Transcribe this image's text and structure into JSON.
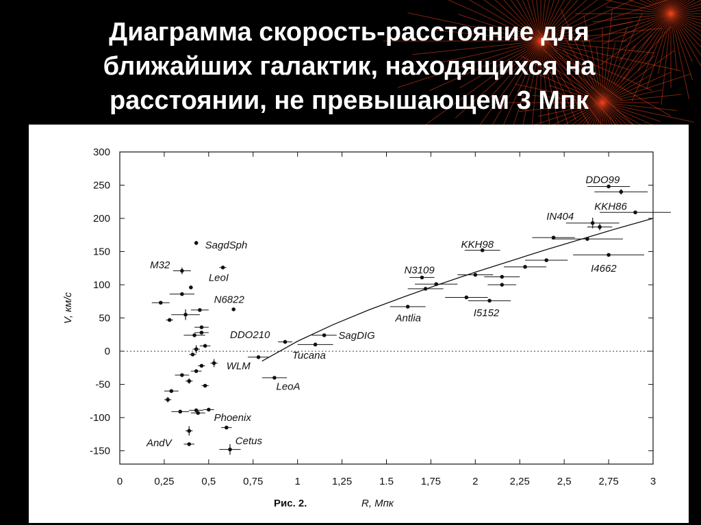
{
  "slide": {
    "title_lines": [
      "Диаграмма скорость-расстояние для",
      "ближайших галактик, находящихся на",
      "расстоянии, не превышающем 3 Мпк"
    ],
    "colors": {
      "background": "#000000",
      "title": "#ffffff",
      "panel": "#ffffff",
      "decoration": "#e8401a"
    }
  },
  "chart_data": {
    "type": "scatter",
    "xlabel": "R, Мпк",
    "ylabel": "V, км/с",
    "caption": "Рис. 2.",
    "xlim": [
      0,
      3
    ],
    "ylim": [
      -170,
      300
    ],
    "x_tick_labels": [
      "0",
      "0,25",
      "0,5",
      "0,75",
      "1",
      "1,25",
      "1.5",
      "1,75",
      "2",
      "2,25",
      "2,5",
      "2,75",
      "3"
    ],
    "y_tick_labels": [
      "300",
      "250",
      "200",
      "150",
      "100",
      "50",
      "0",
      "-50",
      "-100",
      "-150"
    ],
    "zero_line": "dotted",
    "fit_curve": {
      "x": [
        0.8,
        1.0,
        1.2,
        1.4,
        1.6,
        1.8,
        2.0,
        2.2,
        2.4,
        2.6,
        2.8,
        3.0
      ],
      "y": [
        -15,
        15,
        40,
        62,
        82,
        101,
        119,
        136,
        153,
        169,
        185,
        200
      ]
    },
    "points": [
      {
        "x": 2.75,
        "y": 248,
        "xerr": 0.12,
        "yerr": 0,
        "label": "DDO99"
      },
      {
        "x": 2.82,
        "y": 240,
        "xerr": 0.15,
        "yerr": 4,
        "label": ""
      },
      {
        "x": 2.9,
        "y": 209,
        "xerr": 0.2,
        "yerr": 0,
        "label": "KKH86"
      },
      {
        "x": 2.66,
        "y": 193,
        "xerr": 0.15,
        "yerr": 8,
        "label": "IN404"
      },
      {
        "x": 2.7,
        "y": 187,
        "xerr": 0.07,
        "yerr": 5,
        "label": ""
      },
      {
        "x": 2.44,
        "y": 171,
        "xerr": 0.12,
        "yerr": 0,
        "label": ""
      },
      {
        "x": 2.63,
        "y": 169,
        "xerr": 0.2,
        "yerr": 0,
        "label": ""
      },
      {
        "x": 2.75,
        "y": 145,
        "xerr": 0.2,
        "yerr": 0,
        "label": "I4662"
      },
      {
        "x": 2.4,
        "y": 137,
        "xerr": 0.12,
        "yerr": 0,
        "label": ""
      },
      {
        "x": 2.28,
        "y": 127,
        "xerr": 0.12,
        "yerr": 0,
        "label": ""
      },
      {
        "x": 2.04,
        "y": 152,
        "xerr": 0.1,
        "yerr": 0,
        "label": "KKH98"
      },
      {
        "x": 2.0,
        "y": 115,
        "xerr": 0.1,
        "yerr": 0,
        "label": ""
      },
      {
        "x": 2.15,
        "y": 112,
        "xerr": 0.1,
        "yerr": 0,
        "label": ""
      },
      {
        "x": 2.15,
        "y": 100,
        "xerr": 0.08,
        "yerr": 0,
        "label": ""
      },
      {
        "x": 1.7,
        "y": 111,
        "xerr": 0.07,
        "yerr": 0,
        "label": "N3109"
      },
      {
        "x": 1.78,
        "y": 101,
        "xerr": 0.12,
        "yerr": 0,
        "label": ""
      },
      {
        "x": 1.72,
        "y": 94,
        "xerr": 0.1,
        "yerr": 0,
        "label": ""
      },
      {
        "x": 1.95,
        "y": 81,
        "xerr": 0.12,
        "yerr": 0,
        "label": ""
      },
      {
        "x": 2.08,
        "y": 76,
        "xerr": 0.12,
        "yerr": 0,
        "label": "I5152"
      },
      {
        "x": 1.62,
        "y": 67,
        "xerr": 0.1,
        "yerr": 0,
        "label": "Antlia"
      },
      {
        "x": 1.15,
        "y": 24,
        "xerr": 0.07,
        "yerr": 0,
        "label": "SagDIG"
      },
      {
        "x": 0.93,
        "y": 14,
        "xerr": 0.04,
        "yerr": 0,
        "label": "DDO210"
      },
      {
        "x": 1.1,
        "y": 10,
        "xerr": 0.1,
        "yerr": 0,
        "label": "Tucana"
      },
      {
        "x": 0.78,
        "y": -9,
        "xerr": 0.06,
        "yerr": 0,
        "label": ""
      },
      {
        "x": 0.87,
        "y": -40,
        "xerr": 0.07,
        "yerr": 0,
        "label": "LeoA"
      },
      {
        "x": 0.53,
        "y": -18,
        "xerr": 0.02,
        "yerr": 6,
        "label": "WLM"
      },
      {
        "x": 0.64,
        "y": 63,
        "xerr": 0.0,
        "yerr": 0,
        "label": "N6822"
      },
      {
        "x": 0.58,
        "y": 126,
        "xerr": 0.02,
        "yerr": 0,
        "label": "LeoI"
      },
      {
        "x": 0.43,
        "y": 163,
        "xerr": 0.0,
        "yerr": 3,
        "label": "SagdSph"
      },
      {
        "x": 0.35,
        "y": 121,
        "xerr": 0.05,
        "yerr": 5,
        "label": "M32"
      },
      {
        "x": 0.4,
        "y": 96,
        "xerr": 0.0,
        "yerr": 0,
        "label": ""
      },
      {
        "x": 0.35,
        "y": 86,
        "xerr": 0.07,
        "yerr": 0,
        "label": ""
      },
      {
        "x": 0.23,
        "y": 73,
        "xerr": 0.05,
        "yerr": 0,
        "label": ""
      },
      {
        "x": 0.45,
        "y": 62,
        "xerr": 0.05,
        "yerr": 0,
        "label": ""
      },
      {
        "x": 0.37,
        "y": 55,
        "xerr": 0.08,
        "yerr": 8,
        "label": ""
      },
      {
        "x": 0.28,
        "y": 47,
        "xerr": 0.02,
        "yerr": 2,
        "label": ""
      },
      {
        "x": 0.46,
        "y": 36,
        "xerr": 0.04,
        "yerr": 0,
        "label": ""
      },
      {
        "x": 0.42,
        "y": 24,
        "xerr": 0.06,
        "yerr": 0,
        "label": ""
      },
      {
        "x": 0.46,
        "y": 28,
        "xerr": 0.04,
        "yerr": 0,
        "label": ""
      },
      {
        "x": 0.43,
        "y": 3,
        "xerr": 0.02,
        "yerr": 6,
        "label": ""
      },
      {
        "x": 0.48,
        "y": 8,
        "xerr": 0.03,
        "yerr": 0,
        "label": ""
      },
      {
        "x": 0.41,
        "y": -5,
        "xerr": 0.02,
        "yerr": 0,
        "label": ""
      },
      {
        "x": 0.46,
        "y": -22,
        "xerr": 0.02,
        "yerr": 0,
        "label": ""
      },
      {
        "x": 0.43,
        "y": -30,
        "xerr": 0.03,
        "yerr": 0,
        "label": ""
      },
      {
        "x": 0.35,
        "y": -36,
        "xerr": 0.04,
        "yerr": 0,
        "label": ""
      },
      {
        "x": 0.39,
        "y": -45,
        "xerr": 0.02,
        "yerr": 4,
        "label": ""
      },
      {
        "x": 0.48,
        "y": -52,
        "xerr": 0.02,
        "yerr": 0,
        "label": ""
      },
      {
        "x": 0.29,
        "y": -60,
        "xerr": 0.04,
        "yerr": 0,
        "label": ""
      },
      {
        "x": 0.27,
        "y": -73,
        "xerr": 0.02,
        "yerr": 4,
        "label": ""
      },
      {
        "x": 0.34,
        "y": -91,
        "xerr": 0.05,
        "yerr": 0,
        "label": ""
      },
      {
        "x": 0.43,
        "y": -89,
        "xerr": 0.04,
        "yerr": 0,
        "label": ""
      },
      {
        "x": 0.5,
        "y": -88,
        "xerr": 0.03,
        "yerr": 0,
        "label": ""
      },
      {
        "x": 0.44,
        "y": -93,
        "xerr": 0.04,
        "yerr": 0,
        "label": ""
      },
      {
        "x": 0.6,
        "y": -115,
        "xerr": 0.03,
        "yerr": 0,
        "label": "Phoenix"
      },
      {
        "x": 0.39,
        "y": -120,
        "xerr": 0.02,
        "yerr": 7,
        "label": ""
      },
      {
        "x": 0.39,
        "y": -140,
        "xerr": 0.03,
        "yerr": 0,
        "label": "AndV"
      },
      {
        "x": 0.62,
        "y": -148,
        "xerr": 0.06,
        "yerr": 8,
        "label": "Cetus"
      }
    ],
    "annotations": [
      {
        "text": "DDO99",
        "x": 2.62,
        "y": 258
      },
      {
        "text": "KKH86",
        "x": 2.67,
        "y": 218
      },
      {
        "text": "IN404",
        "x": 2.4,
        "y": 203
      },
      {
        "text": "I4662",
        "x": 2.65,
        "y": 125
      },
      {
        "text": "KKH98",
        "x": 1.92,
        "y": 161
      },
      {
        "text": "N3109",
        "x": 1.6,
        "y": 122
      },
      {
        "text": "I5152",
        "x": 1.99,
        "y": 58
      },
      {
        "text": "Antlia",
        "x": 1.55,
        "y": 50
      },
      {
        "text": "SagDIG",
        "x": 1.23,
        "y": 24
      },
      {
        "text": "DDO210",
        "x": 0.62,
        "y": 25
      },
      {
        "text": "Tucana",
        "x": 0.97,
        "y": -6
      },
      {
        "text": "WLM",
        "x": 0.6,
        "y": -22
      },
      {
        "text": "LeoA",
        "x": 0.88,
        "y": -53
      },
      {
        "text": "N6822",
        "x": 0.53,
        "y": 78
      },
      {
        "text": "LeoI",
        "x": 0.5,
        "y": 111
      },
      {
        "text": "SagdSph",
        "x": 0.48,
        "y": 160
      },
      {
        "text": "M32",
        "x": 0.17,
        "y": 130
      },
      {
        "text": "Phoenix",
        "x": 0.53,
        "y": -100
      },
      {
        "text": "Cetus",
        "x": 0.65,
        "y": -135
      },
      {
        "text": "AndV",
        "x": 0.15,
        "y": -138
      }
    ]
  }
}
